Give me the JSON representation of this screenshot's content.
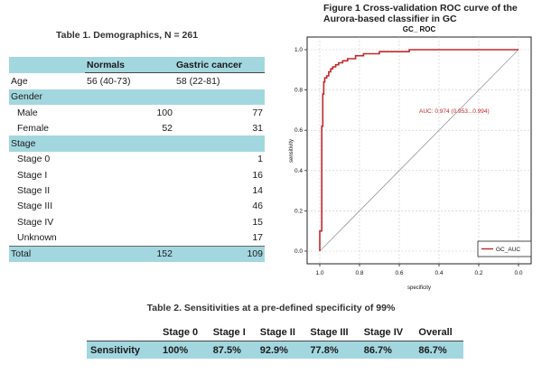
{
  "table1": {
    "title": "Table 1. Demographics, N = 261",
    "headers": [
      "",
      "Normals",
      "Gastric cancer"
    ],
    "rows": [
      [
        "Age",
        "56 (40-73)",
        "58 (22-81)"
      ],
      [
        "Gender",
        "",
        ""
      ],
      [
        "Male",
        "100",
        "77"
      ],
      [
        "Female",
        "52",
        "31"
      ],
      [
        "Stage",
        "",
        ""
      ],
      [
        "Stage 0",
        "",
        "1"
      ],
      [
        "Stage I",
        "",
        "16"
      ],
      [
        "Stage II",
        "",
        "14"
      ],
      [
        "Stage III",
        "",
        "46"
      ],
      [
        "Stage IV",
        "",
        "15"
      ],
      [
        "Unknown",
        "",
        "17"
      ],
      [
        "Total",
        "152",
        "109"
      ]
    ]
  },
  "figure": {
    "title": "Figure 1 Cross-validation ROC curve of the Aurora-based classifier in GC",
    "chart_data": {
      "type": "line",
      "title": "GC_ ROC",
      "xlabel": "specificity",
      "ylabel": "sensitivity",
      "x_reversed": true,
      "xlim": [
        1.0,
        0.0
      ],
      "ylim": [
        0.0,
        1.0
      ],
      "x_ticks": [
        "1.0",
        "0.8",
        "0.6",
        "0.4",
        "0.2",
        "0.0"
      ],
      "y_ticks": [
        "0.0",
        "0.2",
        "0.4",
        "0.6",
        "0.8",
        "1.0"
      ],
      "annotation": "AUC: 0.974 (0.953...0.994)",
      "legend_position": "bottom-right",
      "series": [
        {
          "name": "GC_AUC",
          "color": "#c0282d",
          "points": [
            [
              1.0,
              0.0
            ],
            [
              1.0,
              0.1
            ],
            [
              0.99,
              0.1
            ],
            [
              0.99,
              0.62
            ],
            [
              0.985,
              0.62
            ],
            [
              0.985,
              0.78
            ],
            [
              0.98,
              0.78
            ],
            [
              0.98,
              0.84
            ],
            [
              0.975,
              0.84
            ],
            [
              0.975,
              0.86
            ],
            [
              0.965,
              0.86
            ],
            [
              0.965,
              0.87
            ],
            [
              0.955,
              0.87
            ],
            [
              0.955,
              0.89
            ],
            [
              0.945,
              0.89
            ],
            [
              0.945,
              0.905
            ],
            [
              0.935,
              0.905
            ],
            [
              0.935,
              0.915
            ],
            [
              0.92,
              0.915
            ],
            [
              0.92,
              0.925
            ],
            [
              0.905,
              0.925
            ],
            [
              0.905,
              0.935
            ],
            [
              0.885,
              0.935
            ],
            [
              0.885,
              0.945
            ],
            [
              0.86,
              0.945
            ],
            [
              0.86,
              0.955
            ],
            [
              0.82,
              0.955
            ],
            [
              0.82,
              0.97
            ],
            [
              0.78,
              0.97
            ],
            [
              0.78,
              0.98
            ],
            [
              0.7,
              0.98
            ],
            [
              0.7,
              0.99
            ],
            [
              0.55,
              0.99
            ],
            [
              0.55,
              1.0
            ],
            [
              0.0,
              1.0
            ]
          ]
        }
      ],
      "reference_line": [
        [
          1.0,
          0.0
        ],
        [
          0.0,
          1.0
        ]
      ]
    }
  },
  "table2": {
    "title": "Table 2. Sensitivities at a pre-defined specificity of 99%",
    "headers": [
      "",
      "Stage 0",
      "Stage I",
      "Stage II",
      "Stage III",
      "Stage IV",
      "Overall"
    ],
    "row": [
      "Sensitivity",
      "100%",
      "87.5%",
      "92.9%",
      "77.8%",
      "86.7%",
      "86.7%"
    ]
  }
}
